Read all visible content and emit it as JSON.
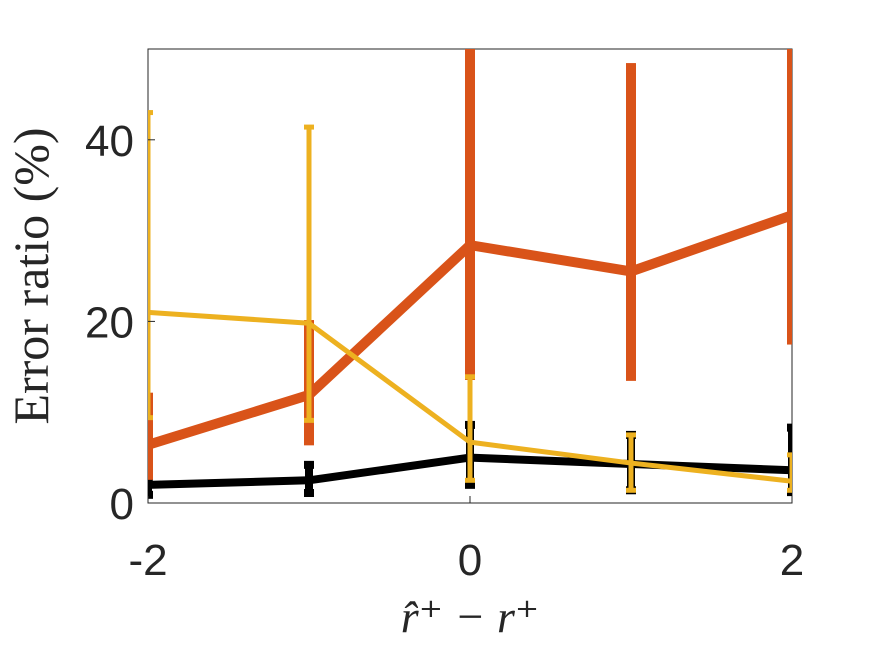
{
  "chart_data": {
    "type": "line",
    "x_label": "r̂⁺ − r⁺",
    "y_label": "Error ratio (%)",
    "x": [
      -2,
      -1,
      0,
      1,
      2
    ],
    "xlim": [
      -2,
      2
    ],
    "xticks": [
      -2,
      0,
      2
    ],
    "ylim": [
      0,
      50
    ],
    "yticks": [
      0,
      20,
      40
    ],
    "series": [
      {
        "color": "#000000",
        "values": [
          2.0,
          2.5,
          5.0,
          4.3,
          3.6
        ],
        "lower": [
          0.9,
          1.1,
          2.0,
          1.4,
          1.2
        ],
        "upper": [
          2.9,
          4.2,
          8.6,
          7.5,
          8.3
        ]
      },
      {
        "color": "#d95319",
        "values": [
          6.4,
          11.9,
          28.4,
          25.5,
          31.7
        ],
        "lower": [
          3.1,
          6.9,
          14.1,
          14.0,
          18.0
        ],
        "upper": [
          11.6,
          19.6,
          55,
          47.9,
          55
        ]
      },
      {
        "color": "#edb120",
        "values": [
          21.0,
          19.8,
          6.7,
          4.4,
          2.4
        ],
        "lower": [
          9.4,
          9.1,
          2.5,
          1.4,
          1.4
        ],
        "upper": [
          43.0,
          41.4,
          13.9,
          7.5,
          5.3
        ]
      }
    ]
  }
}
